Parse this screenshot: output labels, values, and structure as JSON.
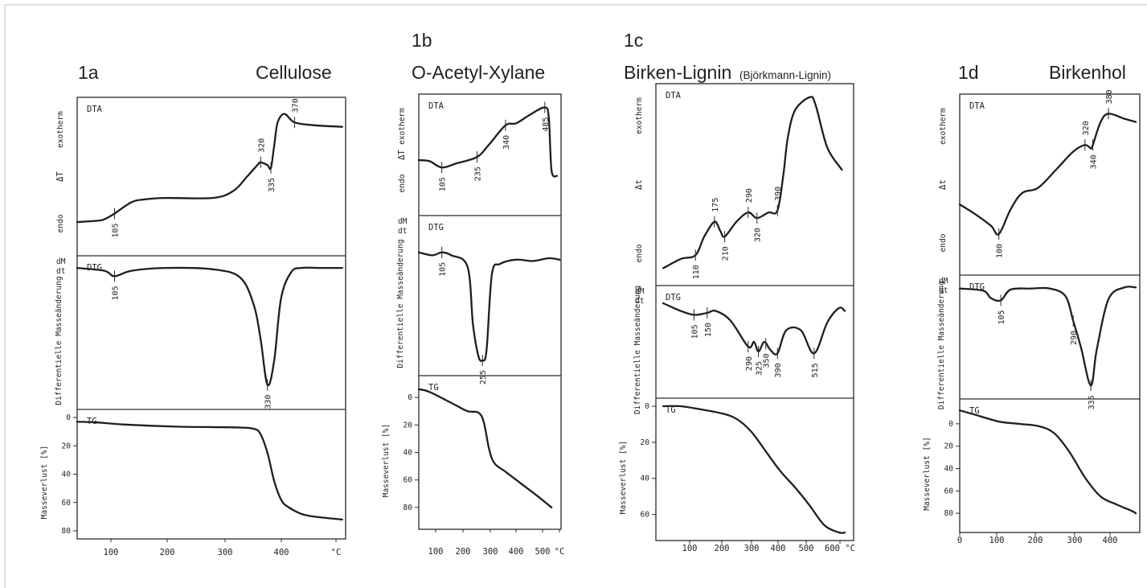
{
  "figure_labels": {
    "1a": {
      "id": "1a",
      "title": "Cellulose",
      "subtitle": ""
    },
    "1b": {
      "id": "1b",
      "title": "O-Acetyl-Xylane",
      "subtitle": ""
    },
    "1c": {
      "id": "1c",
      "title": "Birken-Lignin",
      "subtitle": "(Björkmann-Lignin)"
    },
    "1d": {
      "id": "1d",
      "title": "Birkenhol",
      "subtitle": ""
    }
  },
  "colors": {
    "ink": "#1e1e1e",
    "frame": "#c9c9c9"
  },
  "chart_data": [
    {
      "id": "1a",
      "type": "line",
      "title": "Cellulose",
      "xlabel": "°C",
      "x_ticks": [
        "100",
        "200",
        "300",
        "400",
        "°C"
      ],
      "panels": [
        {
          "name": "DTA",
          "ylabel_top": "exotherm",
          "ylabel_mid": "ΔT",
          "ylabel_bottom": "endo",
          "x": [
            50,
            80,
            90,
            105,
            130,
            150,
            180,
            250,
            280,
            300,
            315,
            320,
            330,
            335,
            340,
            345,
            355,
            370,
            400,
            440
          ],
          "y": [
            0.18,
            0.19,
            0.2,
            0.24,
            0.32,
            0.34,
            0.35,
            0.35,
            0.4,
            0.5,
            0.58,
            0.6,
            0.58,
            0.56,
            0.72,
            0.88,
            0.94,
            0.88,
            0.86,
            0.85
          ],
          "peaks": [
            "105",
            "320",
            "335",
            "370"
          ]
        },
        {
          "name": "DTG",
          "ylabel_top": "dM",
          "ylabel_top2": "dt",
          "ylabel_rot": "Differentielle Masseänderung",
          "x": [
            50,
            90,
            105,
            130,
            180,
            250,
            290,
            310,
            320,
            330,
            340,
            350,
            365,
            380,
            410,
            440
          ],
          "y": [
            0.97,
            0.95,
            0.91,
            0.95,
            0.97,
            0.96,
            0.9,
            0.7,
            0.45,
            0.12,
            0.3,
            0.75,
            0.94,
            0.97,
            0.97,
            0.97
          ],
          "peaks": [
            "105",
            "330"
          ]
        },
        {
          "name": "TG",
          "ylabel_rot": "Masseverlust [%]",
          "ylim": [
            0,
            80
          ],
          "y_ticks": [
            "0",
            "20",
            "40",
            "60",
            "80"
          ],
          "x": [
            50,
            80,
            120,
            200,
            280,
            310,
            320,
            330,
            340,
            350,
            360,
            380,
            400,
            440
          ],
          "y": [
            3,
            3.5,
            5,
            6.5,
            7,
            8,
            12,
            25,
            45,
            58,
            63,
            68,
            70,
            72
          ]
        }
      ]
    },
    {
      "id": "1b",
      "type": "line",
      "title": "O-Acetyl-Xylane",
      "xlabel": "°C",
      "x_ticks": [
        "100",
        "200",
        "300",
        "400",
        "500",
        "°C"
      ],
      "panels": [
        {
          "name": "DTA",
          "ylabel_top": "exotherm",
          "ylabel_mid": "ΔT",
          "ylabel_bottom": "endo",
          "x": [
            20,
            60,
            105,
            160,
            235,
            280,
            340,
            380,
            430,
            485,
            500,
            510,
            530
          ],
          "y": [
            0.45,
            0.44,
            0.38,
            0.42,
            0.48,
            0.6,
            0.78,
            0.8,
            0.88,
            0.95,
            0.85,
            0.35,
            0.3
          ],
          "peaks": [
            "105",
            "235",
            "340",
            "485"
          ]
        },
        {
          "name": "DTG",
          "ylabel_top": "dM",
          "ylabel_top2": "dt",
          "ylabel_rot": "Differentielle Masseänderung",
          "x": [
            20,
            70,
            105,
            140,
            200,
            220,
            240,
            255,
            270,
            290,
            320,
            380,
            440,
            500,
            540
          ],
          "y": [
            0.8,
            0.78,
            0.8,
            0.78,
            0.7,
            0.3,
            0.08,
            0.05,
            0.12,
            0.65,
            0.72,
            0.75,
            0.74,
            0.76,
            0.75
          ],
          "peaks": [
            "105",
            "255"
          ]
        },
        {
          "name": "TG",
          "ylabel_rot": "Masseverlust [%]",
          "ylim": [
            -10,
            90
          ],
          "y_ticks": [
            "0",
            "20",
            "40",
            "60",
            "80"
          ],
          "x": [
            20,
            60,
            150,
            200,
            240,
            260,
            280,
            300,
            340,
            400,
            460,
            510
          ],
          "y": [
            -6,
            -4,
            5,
            10,
            11,
            18,
            38,
            48,
            54,
            63,
            72,
            80
          ]
        }
      ]
    },
    {
      "id": "1c",
      "type": "line",
      "title": "Birken-Lignin (Björkmann-Lignin)",
      "xlabel": "°C",
      "x_ticks": [
        "100",
        "200",
        "300",
        "400",
        "500",
        "600 °C"
      ],
      "panels": [
        {
          "name": "DTA",
          "ylabel_top": "exotherm",
          "ylabel_mid": "Δt",
          "ylabel_bottom": "endo",
          "x": [
            0,
            60,
            110,
            140,
            175,
            195,
            210,
            250,
            290,
            320,
            360,
            390,
            410,
            425,
            450,
            500,
            520,
            560,
            610
          ],
          "y": [
            0.05,
            0.1,
            0.12,
            0.22,
            0.3,
            0.25,
            0.22,
            0.3,
            0.35,
            0.32,
            0.35,
            0.36,
            0.55,
            0.75,
            0.9,
            0.97,
            0.93,
            0.7,
            0.58
          ],
          "peaks": [
            "110",
            "175",
            "210",
            "290",
            "320",
            "390"
          ]
        },
        {
          "name": "DTG",
          "ylabel_top": "dM",
          "ylabel_top2": "dt",
          "ylabel_rot": "Differentielle Masseänderung",
          "x": [
            0,
            60,
            105,
            150,
            180,
            230,
            290,
            310,
            325,
            345,
            365,
            390,
            420,
            470,
            515,
            560,
            600,
            620
          ],
          "y": [
            0.9,
            0.82,
            0.78,
            0.8,
            0.82,
            0.72,
            0.45,
            0.5,
            0.4,
            0.5,
            0.42,
            0.38,
            0.62,
            0.62,
            0.38,
            0.7,
            0.85,
            0.82
          ],
          "peaks": [
            "105",
            "150",
            "290",
            "325",
            "350",
            "390",
            "515"
          ]
        },
        {
          "name": "TG",
          "ylabel_rot": "Masseverlust [%]",
          "ylim": [
            0,
            70
          ],
          "y_ticks": [
            "0",
            "20",
            "40",
            "60"
          ],
          "x": [
            0,
            60,
            120,
            200,
            250,
            300,
            350,
            400,
            450,
            500,
            550,
            600,
            620
          ],
          "y": [
            0,
            0,
            1.5,
            4,
            7,
            14,
            25,
            36,
            45,
            55,
            66,
            70,
            70
          ]
        }
      ]
    },
    {
      "id": "1d",
      "type": "line",
      "title": "Birkenhol",
      "xlabel": "",
      "x_ticks": [
        "0",
        "100",
        "200",
        "300",
        "400"
      ],
      "panels": [
        {
          "name": "DTA",
          "ylabel_top": "exotherm",
          "ylabel_mid": "Δt",
          "ylabel_bottom": "endo",
          "x": [
            0,
            40,
            80,
            100,
            130,
            160,
            200,
            250,
            290,
            320,
            335,
            340,
            360,
            380,
            420,
            450
          ],
          "y": [
            0.38,
            0.32,
            0.25,
            0.2,
            0.35,
            0.45,
            0.48,
            0.6,
            0.7,
            0.74,
            0.72,
            0.74,
            0.88,
            0.93,
            0.9,
            0.88
          ],
          "peaks": [
            "100",
            "320",
            "340",
            "380"
          ]
        },
        {
          "name": "DTG",
          "ylabel_top": "dM",
          "ylabel_top2": "dt",
          "ylabel_rot": "Differentielle Masseänderung",
          "x": [
            0,
            60,
            80,
            105,
            130,
            180,
            230,
            270,
            290,
            310,
            335,
            350,
            380,
            420,
            450
          ],
          "y": [
            0.95,
            0.93,
            0.86,
            0.84,
            0.94,
            0.95,
            0.95,
            0.88,
            0.65,
            0.4,
            0.05,
            0.38,
            0.85,
            0.96,
            0.96
          ],
          "peaks": [
            "105",
            "290",
            "335"
          ]
        },
        {
          "name": "TG",
          "ylabel_rot": "Masseverlust [%]",
          "ylim": [
            -15,
            90
          ],
          "y_ticks": [
            "0",
            "20",
            "40",
            "60",
            "80"
          ],
          "x": [
            0,
            40,
            100,
            150,
            200,
            240,
            280,
            320,
            360,
            400,
            440,
            450
          ],
          "y": [
            -12,
            -8,
            -2,
            0,
            2,
            8,
            25,
            48,
            65,
            72,
            78,
            80
          ]
        }
      ]
    }
  ]
}
